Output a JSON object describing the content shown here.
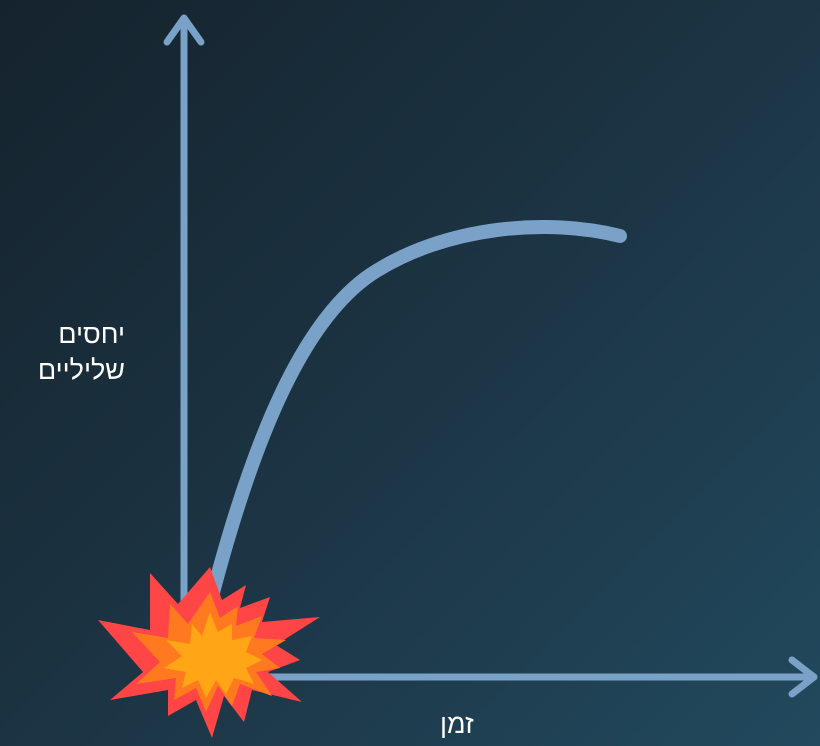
{
  "y_axis_label_lines": [
    "יחסים",
    "שליליים"
  ],
  "x_axis_label": "זמן",
  "colors": {
    "background_start": "#15232d",
    "background_end": "#22495e",
    "axis": "#7aa2c8",
    "curve": "#7aa2c8",
    "explosion_outer": "#ff4545",
    "explosion_middle": "#ff7a1e",
    "explosion_inner": "#ffa516",
    "label_text": "#ffffff"
  },
  "icons": {
    "origin_marker": "explosion-icon"
  }
}
